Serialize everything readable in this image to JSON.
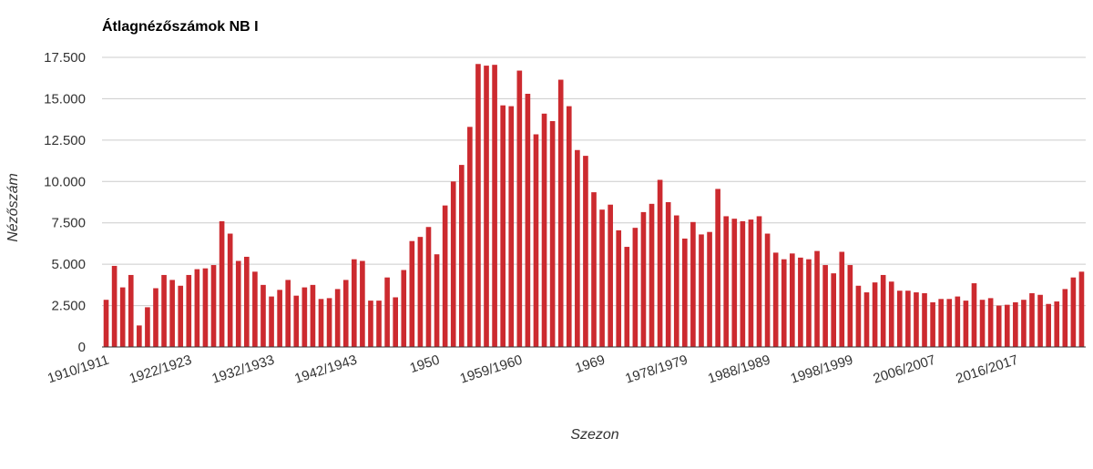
{
  "title": "Átlagnézőszámok NB I",
  "colors": {
    "bar": "#cc2a2f",
    "grid": "#cccccc",
    "axis": "#333333",
    "text": "#333333"
  },
  "chart_data": {
    "type": "bar",
    "title": "Átlagnézőszámok NB I",
    "xlabel": "Szezon",
    "ylabel": "Nézőszám",
    "ylim": [
      0,
      17500
    ],
    "y_ticks": [
      0,
      2500,
      5000,
      7500,
      10000,
      12500,
      15000,
      17500
    ],
    "y_tick_labels": [
      "0",
      "2.500",
      "5.000",
      "7.500",
      "10.000",
      "12.500",
      "15.000",
      "17.500"
    ],
    "x_tick_labels": [
      {
        "index": 0,
        "label": "1910/1911"
      },
      {
        "index": 10,
        "label": "1922/1923"
      },
      {
        "index": 20,
        "label": "1932/1933"
      },
      {
        "index": 30,
        "label": "1942/1943"
      },
      {
        "index": 40,
        "label": "1950"
      },
      {
        "index": 50,
        "label": "1959/1960"
      },
      {
        "index": 60,
        "label": "1969"
      },
      {
        "index": 70,
        "label": "1978/1979"
      },
      {
        "index": 80,
        "label": "1988/1989"
      },
      {
        "index": 90,
        "label": "1998/1999"
      },
      {
        "index": 100,
        "label": "2006/2007"
      },
      {
        "index": 110,
        "label": "2016/2017"
      }
    ],
    "grid": true,
    "legend": "none",
    "values": [
      2850,
      4900,
      3600,
      4350,
      1300,
      2400,
      3550,
      4350,
      4050,
      3700,
      4350,
      4700,
      4750,
      4950,
      7600,
      6850,
      5200,
      5450,
      4550,
      3750,
      3050,
      3450,
      4050,
      3100,
      3600,
      3750,
      2900,
      2950,
      3500,
      4050,
      5300,
      5200,
      2800,
      2800,
      4200,
      3000,
      4650,
      6400,
      6650,
      7250,
      5600,
      8550,
      10000,
      11000,
      13300,
      17100,
      17000,
      17050,
      14600,
      14550,
      16700,
      15300,
      12850,
      14100,
      13650,
      16150,
      14550,
      11900,
      11550,
      9350,
      8300,
      8600,
      7050,
      6050,
      7200,
      8150,
      8650,
      10100,
      8750,
      7950,
      6550,
      7550,
      6800,
      6950,
      9550,
      7900,
      7750,
      7600,
      7700,
      7900,
      6850,
      5700,
      5300,
      5650,
      5400,
      5300,
      5800,
      4950,
      4450,
      5750,
      4950,
      3700,
      3300,
      3900,
      4350,
      3950,
      3400,
      3400,
      3300,
      3250,
      2700,
      2900,
      2900,
      3050,
      2800,
      3850,
      2850,
      2950,
      2500,
      2550,
      2700,
      2850,
      3250,
      3150,
      2600,
      2750,
      3500,
      4200,
      4550
    ]
  }
}
